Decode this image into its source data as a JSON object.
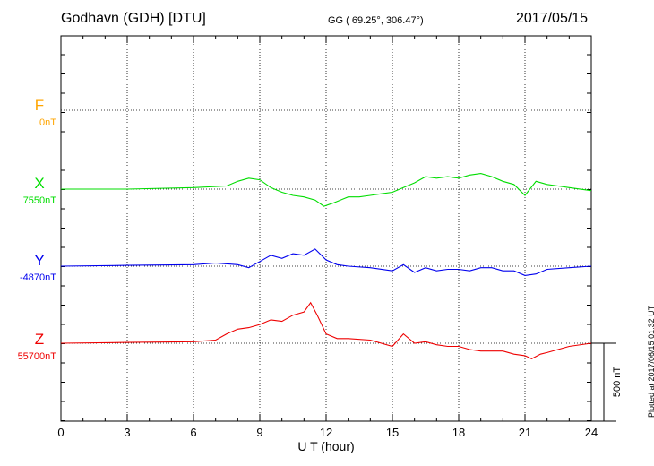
{
  "header": {
    "station": "Godhavn (GDH)  [DTU]",
    "coords": "GG ( 69.25°, 306.47°)",
    "date": "2017/05/15",
    "plotted": "Plotted at 2017/06/15 01:32 UT"
  },
  "chart_data": {
    "type": "line",
    "xlabel": "U T (hour)",
    "xlim": [
      0,
      24
    ],
    "x_ticks": [
      "0",
      "3",
      "6",
      "9",
      "12",
      "15",
      "18",
      "21",
      "24"
    ],
    "grid": true,
    "scale_bar": {
      "label": "500 nT",
      "value": 500
    },
    "series": [
      {
        "name": "F",
        "baseline": "0nT",
        "color": "#ffa500",
        "x": [],
        "y": []
      },
      {
        "name": "X",
        "baseline": "7550nT",
        "color": "#00dd00",
        "x": [
          0,
          3,
          6,
          7.5,
          8,
          8.5,
          9,
          9.5,
          10,
          10.5,
          11,
          11.5,
          11.9,
          12.3,
          13,
          13.5,
          14,
          14.5,
          15,
          15.5,
          16,
          16.5,
          17,
          17.5,
          18,
          18.5,
          19,
          19.5,
          20,
          20.5,
          21,
          21.5,
          22,
          22.5,
          23,
          24
        ],
        "y": [
          7550,
          7550,
          7560,
          7570,
          7600,
          7620,
          7610,
          7560,
          7530,
          7510,
          7500,
          7480,
          7440,
          7460,
          7500,
          7500,
          7510,
          7520,
          7530,
          7560,
          7590,
          7630,
          7620,
          7630,
          7620,
          7640,
          7650,
          7630,
          7600,
          7580,
          7510,
          7600,
          7580,
          7570,
          7560,
          7540
        ]
      },
      {
        "name": "Y",
        "baseline": "-4870nT",
        "color": "#0000ee",
        "x": [
          0,
          3,
          6,
          7,
          8,
          8.5,
          9,
          9.5,
          10,
          10.5,
          11,
          11.5,
          12,
          12.5,
          13,
          14,
          15,
          15.5,
          16,
          16.5,
          17,
          17.5,
          18,
          18.5,
          19,
          19.5,
          20,
          20.5,
          21,
          21.5,
          22,
          23,
          24
        ],
        "y": [
          -4870,
          -4865,
          -4860,
          -4850,
          -4860,
          -4880,
          -4840,
          -4800,
          -4820,
          -4790,
          -4800,
          -4760,
          -4830,
          -4860,
          -4870,
          -4880,
          -4900,
          -4860,
          -4910,
          -4880,
          -4900,
          -4890,
          -4890,
          -4900,
          -4880,
          -4880,
          -4900,
          -4900,
          -4930,
          -4920,
          -4890,
          -4880,
          -4870
        ]
      },
      {
        "name": "Z",
        "baseline": "55700nT",
        "color": "#ee0000",
        "x": [
          0,
          3,
          6,
          7,
          7.5,
          8,
          8.5,
          9,
          9.5,
          10,
          10.5,
          11,
          11.3,
          11.6,
          12,
          12.5,
          13,
          14,
          15,
          15.5,
          16,
          16.5,
          17,
          17.5,
          18,
          18.5,
          19,
          19.5,
          20,
          20.5,
          21,
          21.3,
          21.7,
          22,
          23,
          24
        ],
        "y": [
          55700,
          55705,
          55710,
          55720,
          55760,
          55790,
          55800,
          55820,
          55850,
          55840,
          55880,
          55900,
          55960,
          55880,
          55760,
          55730,
          55730,
          55720,
          55680,
          55760,
          55700,
          55710,
          55690,
          55680,
          55680,
          55660,
          55650,
          55650,
          55650,
          55630,
          55620,
          55600,
          55630,
          55640,
          55680,
          55700
        ]
      }
    ]
  }
}
